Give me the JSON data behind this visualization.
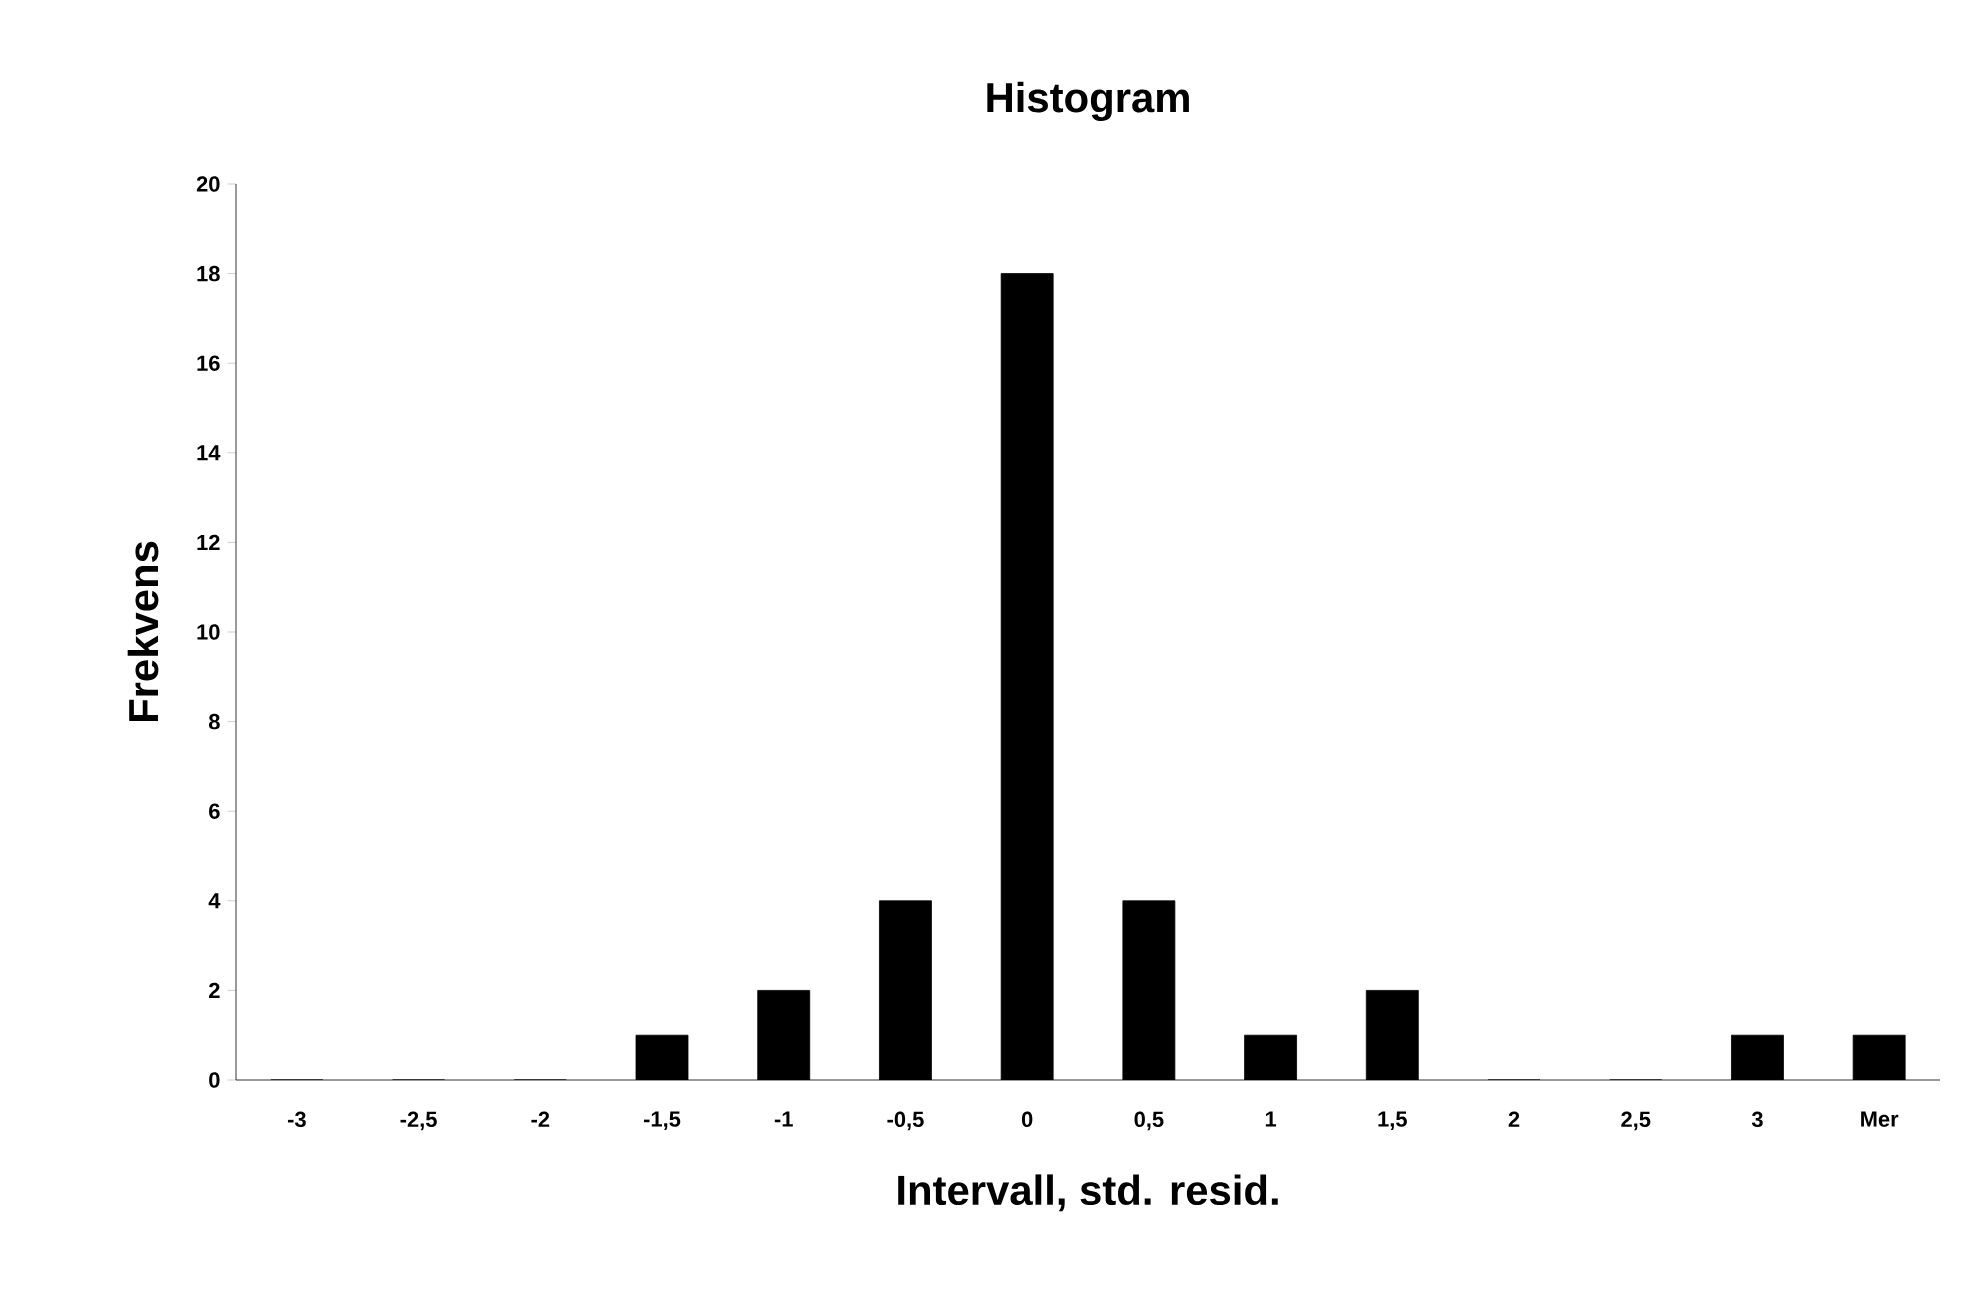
{
  "chart_data": {
    "type": "bar",
    "title": "Histogram",
    "xlabel": "Intervall, std. resid.",
    "ylabel": "Frekvens",
    "categories": [
      "-3",
      "-2,5",
      "-2",
      "-1,5",
      "-1",
      "-0,5",
      "0",
      "0,5",
      "1",
      "1,5",
      "2",
      "2,5",
      "3",
      "Mer"
    ],
    "values": [
      0,
      0,
      0,
      1,
      2,
      4,
      18,
      4,
      1,
      2,
      0,
      0,
      1,
      1
    ],
    "color": "#000000",
    "ylim": [
      0,
      20
    ],
    "yticks": [
      0,
      2,
      4,
      6,
      8,
      10,
      12,
      14,
      16,
      18,
      20
    ]
  }
}
